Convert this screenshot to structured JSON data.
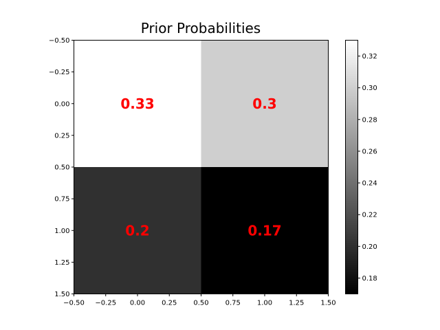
{
  "chart_data": {
    "type": "heatmap",
    "title": "Prior Probabilities",
    "xlabel": "",
    "ylabel": "",
    "rows": 2,
    "cols": 2,
    "values": [
      [
        0.33,
        0.3
      ],
      [
        0.2,
        0.17
      ]
    ],
    "cell_labels": [
      [
        "0.33",
        "0.3"
      ],
      [
        "0.2",
        "0.17"
      ]
    ],
    "xlim": [
      -0.5,
      1.5
    ],
    "ylim": [
      1.5,
      -0.5
    ],
    "x_ticks": [
      -0.5,
      -0.25,
      0.0,
      0.25,
      0.5,
      0.75,
      1.0,
      1.25,
      1.5
    ],
    "x_tick_labels": [
      "−0.50",
      "−0.25",
      "0.00",
      "0.25",
      "0.50",
      "0.75",
      "1.00",
      "1.25",
      "1.50"
    ],
    "y_ticks": [
      -0.5,
      -0.25,
      0.0,
      0.25,
      0.5,
      0.75,
      1.0,
      1.25,
      1.5
    ],
    "y_tick_labels": [
      "−0.50",
      "−0.25",
      "0.00",
      "0.25",
      "0.50",
      "0.75",
      "1.00",
      "1.25",
      "1.50"
    ],
    "colormap": "gray",
    "vmin": 0.17,
    "vmax": 0.33,
    "colorbar_ticks": [
      0.18,
      0.2,
      0.22,
      0.24,
      0.26,
      0.28,
      0.3,
      0.32
    ],
    "colorbar_tick_labels": [
      "0.18",
      "0.20",
      "0.22",
      "0.24",
      "0.26",
      "0.28",
      "0.30",
      "0.32"
    ],
    "annotation_color": "#ff0000",
    "grid": false
  }
}
